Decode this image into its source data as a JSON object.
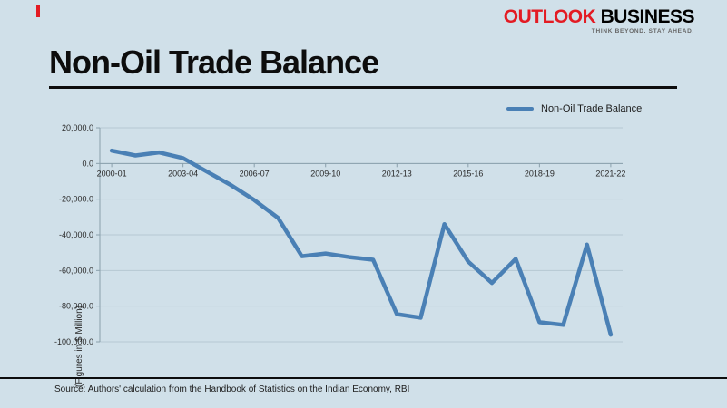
{
  "brand": {
    "outlook": "OUTLOOK",
    "business": "BUSINESS",
    "tagline": "THINK BEYOND. STAY AHEAD.",
    "red": "#e31b23"
  },
  "title": "Non-Oil Trade Balance",
  "legend": {
    "label": "Non-Oil Trade Balance"
  },
  "source": "Source: Authors' calculation from the Handbook of Statistics on the Indian Economy, RBI",
  "chart_data": {
    "type": "line",
    "title": "Non-Oil Trade Balance",
    "xlabel": "",
    "ylabel": "(Figures in $ Million)",
    "ylim": [
      -100000,
      20000
    ],
    "grid": true,
    "legend_position": "top-right",
    "line_color": "#4a80b5",
    "grid_color": "#b6c8d2",
    "axis_color": "#8aa0ac",
    "background": "#d0e0e9",
    "x": [
      "2000-01",
      "2001-02",
      "2002-03",
      "2003-04",
      "2004-05",
      "2005-06",
      "2006-07",
      "2007-08",
      "2008-09",
      "2009-10",
      "2010-11",
      "2011-12",
      "2012-13",
      "2013-14",
      "2014-15",
      "2015-16",
      "2016-17",
      "2017-18",
      "2018-19",
      "2019-20",
      "2020-21",
      "2021-22"
    ],
    "values": [
      7200,
      4500,
      6200,
      3000,
      -4500,
      -12000,
      -20500,
      -30500,
      -52000,
      -50500,
      -52500,
      -54000,
      -84500,
      -86500,
      -34000,
      -55000,
      -67000,
      -53500,
      -89000,
      -90500,
      -45500,
      -96000
    ],
    "x_tick_labels": [
      "2000-01",
      "2003-04",
      "2006-07",
      "2009-10",
      "2012-13",
      "2015-16",
      "2018-19",
      "2021-22"
    ],
    "y_ticks": [
      {
        "value": 20000,
        "label": "20,000.0"
      },
      {
        "value": 0,
        "label": "0.0"
      },
      {
        "value": -20000,
        "label": "-20,000.0"
      },
      {
        "value": -40000,
        "label": "-40,000.0"
      },
      {
        "value": -60000,
        "label": "-60,000.0"
      },
      {
        "value": -80000,
        "label": "-80,000.0"
      },
      {
        "value": -100000,
        "label": "-100,000.0"
      }
    ]
  }
}
